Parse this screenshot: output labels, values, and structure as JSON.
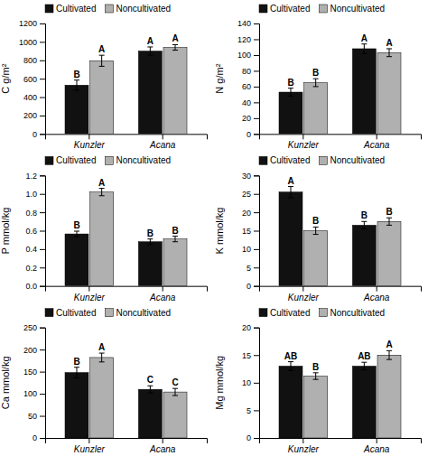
{
  "chart_data": [
    {
      "type": "bar",
      "y_label": "C g/m²",
      "categories": [
        "Kunzler",
        "Acana"
      ],
      "series": [
        {
          "name": "Cultivated",
          "color": "#111111",
          "values": [
            530,
            900
          ],
          "errors": [
            55,
            45
          ],
          "annotations": [
            "B",
            "A"
          ]
        },
        {
          "name": "Noncultivated",
          "color": "#b0b0b0",
          "values": [
            795,
            940
          ],
          "errors": [
            60,
            30
          ],
          "annotations": [
            "A",
            "A"
          ]
        }
      ],
      "ylim": [
        0,
        1200
      ],
      "yticks": [
        0,
        200,
        400,
        600,
        800,
        1000,
        1200
      ],
      "grid": false,
      "legend": "upper left"
    },
    {
      "type": "bar",
      "y_label": "N g/m²",
      "categories": [
        "Kunzler",
        "Acana"
      ],
      "series": [
        {
          "name": "Cultivated",
          "color": "#111111",
          "values": [
            53,
            108
          ],
          "errors": [
            5,
            6
          ],
          "annotations": [
            "B",
            "A"
          ]
        },
        {
          "name": "Noncultivated",
          "color": "#b0b0b0",
          "values": [
            65,
            103
          ],
          "errors": [
            5,
            5
          ],
          "annotations": [
            "B",
            "A"
          ]
        }
      ],
      "ylim": [
        0,
        140
      ],
      "yticks": [
        0,
        20,
        40,
        60,
        80,
        100,
        120,
        140
      ],
      "grid": false,
      "legend": "upper left"
    },
    {
      "type": "bar",
      "y_label": "P mmol/kg",
      "categories": [
        "Kunzler",
        "Acana"
      ],
      "series": [
        {
          "name": "Cultivated",
          "color": "#111111",
          "values": [
            0.565,
            0.48
          ],
          "errors": [
            0.03,
            0.03
          ],
          "annotations": [
            "B",
            "B"
          ]
        },
        {
          "name": "Noncultivated",
          "color": "#b0b0b0",
          "values": [
            1.02,
            0.51
          ],
          "errors": [
            0.04,
            0.03
          ],
          "annotations": [
            "A",
            "B"
          ]
        }
      ],
      "ylim": [
        0,
        1.2
      ],
      "yticks": [
        {
          "value": 0,
          "label": "0.0"
        },
        0.2,
        0.4,
        0.6,
        0.8,
        {
          "value": 1,
          "label": "1.0"
        },
        1.2
      ],
      "grid": false,
      "legend": "upper left"
    },
    {
      "type": "bar",
      "y_label": "K mmol/kg",
      "categories": [
        "Kunzler",
        "Acana"
      ],
      "series": [
        {
          "name": "Cultivated",
          "color": "#111111",
          "values": [
            25.5,
            16.5
          ],
          "errors": [
            1.5,
            1.0
          ],
          "annotations": [
            "A",
            "B"
          ]
        },
        {
          "name": "Noncultivated",
          "color": "#b0b0b0",
          "values": [
            15.0,
            17.5
          ],
          "errors": [
            1.0,
            1.0
          ],
          "annotations": [
            "B",
            "B"
          ]
        }
      ],
      "ylim": [
        0,
        30
      ],
      "yticks": [
        0,
        5,
        10,
        15,
        20,
        25,
        30
      ],
      "grid": false,
      "legend": "upper left"
    },
    {
      "type": "bar",
      "y_label": "Ca mmol/kg",
      "categories": [
        "Kunzler",
        "Acana"
      ],
      "series": [
        {
          "name": "Cultivated",
          "color": "#111111",
          "values": [
            148,
            110
          ],
          "errors": [
            12,
            8
          ],
          "annotations": [
            "B",
            "C"
          ]
        },
        {
          "name": "Noncultivated",
          "color": "#b0b0b0",
          "values": [
            182,
            104
          ],
          "errors": [
            10,
            8
          ],
          "annotations": [
            "A",
            "C"
          ]
        }
      ],
      "ylim": [
        0,
        250
      ],
      "yticks": [
        0,
        50,
        100,
        150,
        200,
        250
      ],
      "grid": false,
      "legend": "upper left"
    },
    {
      "type": "bar",
      "y_label": "Mg mmol/kg",
      "categories": [
        "Kunzler",
        "Acana"
      ],
      "series": [
        {
          "name": "Cultivated",
          "color": "#111111",
          "values": [
            13.0,
            13.0
          ],
          "errors": [
            0.8,
            0.7
          ],
          "annotations": [
            "AB",
            "AB"
          ]
        },
        {
          "name": "Noncultivated",
          "color": "#b0b0b0",
          "values": [
            11.2,
            15.0
          ],
          "errors": [
            0.6,
            0.8
          ],
          "annotations": [
            "B",
            "A"
          ]
        }
      ],
      "ylim": [
        0,
        20
      ],
      "yticks": [
        0,
        5,
        10,
        15,
        20
      ],
      "grid": false,
      "legend": "upper left"
    }
  ]
}
